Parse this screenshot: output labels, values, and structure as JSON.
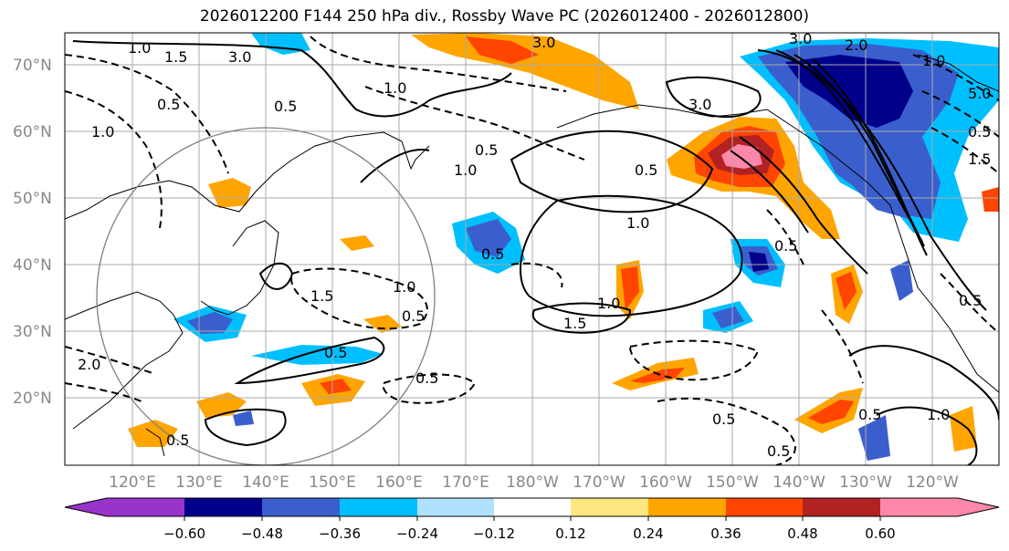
{
  "title": "2026012200 F144 250 hPa div., Rossby Wave PC (2026012400 - 2026012800)",
  "lat_labels": [
    "70°N",
    "60°N",
    "50°N",
    "40°N",
    "30°N",
    "20°N"
  ],
  "lon_labels": [
    "120°E",
    "130°E",
    "140°E",
    "150°E",
    "160°E",
    "170°E",
    "180°W",
    "170°W",
    "160°W",
    "150°W",
    "140°W",
    "130°W",
    "120°W"
  ],
  "colorbar": {
    "colors": [
      "#9933cc",
      "#00008b",
      "#3a5fcd",
      "#00bfff",
      "#b0e2ff",
      "#ffffff",
      "#ffe680",
      "#ffa500",
      "#ff4500",
      "#b22222",
      "#ff88aa"
    ],
    "ticks": [
      "−0.60",
      "−0.48",
      "−0.36",
      "−0.24",
      "−0.12",
      "0.12",
      "0.24",
      "0.36",
      "0.48",
      "0.60"
    ]
  },
  "contour_labels": [
    "3.0",
    "3.0",
    "1.0",
    "1.5",
    "0.5",
    "0.5",
    "1.0",
    "3.0",
    "0.5",
    "1.0",
    "3.0",
    "1.0",
    "1.0",
    "1.5",
    "1.0",
    "0.5",
    "0.5",
    "0.5",
    "1.0",
    "1.5",
    "0.5",
    "0.5",
    "1.0",
    "0.5",
    "0.5",
    "0.5",
    "1.5",
    "5.0",
    "2.0",
    "2.0",
    "0.5",
    "0.5",
    "0.5",
    "1.0",
    "0.5"
  ]
}
